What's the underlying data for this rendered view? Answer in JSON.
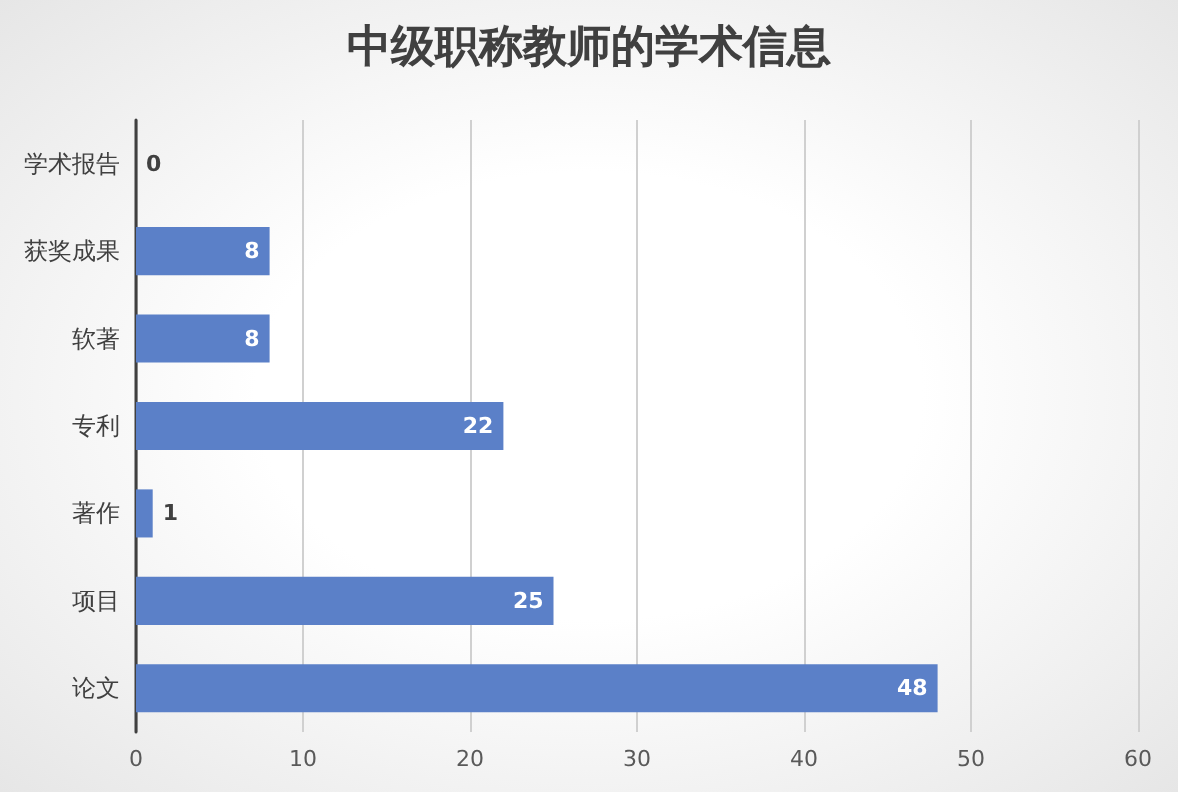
{
  "chart_data": {
    "type": "bar",
    "orientation": "horizontal",
    "title": "中级职称教师的学术信息",
    "categories": [
      "学术报告",
      "获奖成果",
      "软著",
      "专利",
      "著作",
      "项目",
      "论文"
    ],
    "values": [
      0,
      8,
      8,
      22,
      1,
      25,
      48
    ],
    "color": "#5b80c8",
    "xlim": [
      0,
      60
    ],
    "xticks": [
      0,
      10,
      20,
      30,
      40,
      50,
      60
    ],
    "grid": "x",
    "data_labels": true
  }
}
